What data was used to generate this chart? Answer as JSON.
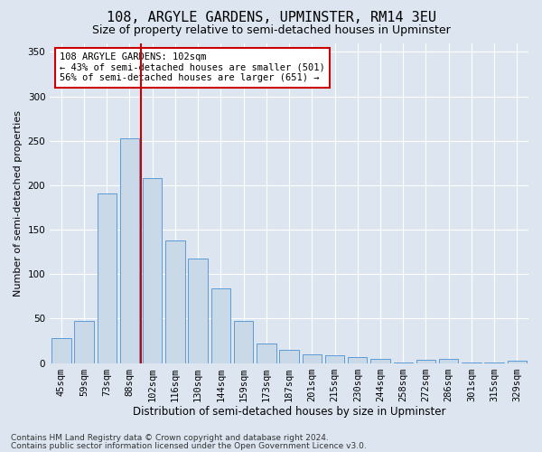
{
  "title": "108, ARGYLE GARDENS, UPMINSTER, RM14 3EU",
  "subtitle": "Size of property relative to semi-detached houses in Upminster",
  "xlabel": "Distribution of semi-detached houses by size in Upminster",
  "ylabel": "Number of semi-detached properties",
  "categories": [
    "45sqm",
    "59sqm",
    "73sqm",
    "88sqm",
    "102sqm",
    "116sqm",
    "130sqm",
    "144sqm",
    "159sqm",
    "173sqm",
    "187sqm",
    "201sqm",
    "215sqm",
    "230sqm",
    "244sqm",
    "258sqm",
    "272sqm",
    "286sqm",
    "301sqm",
    "315sqm",
    "329sqm"
  ],
  "values": [
    28,
    47,
    191,
    253,
    208,
    138,
    118,
    84,
    47,
    22,
    15,
    10,
    9,
    7,
    5,
    1,
    4,
    5,
    1,
    1,
    3
  ],
  "bar_color": "#c9d9e8",
  "bar_edge_color": "#5b9bd5",
  "vline_index": 4,
  "vline_color": "#cc0000",
  "annotation_title": "108 ARGYLE GARDENS: 102sqm",
  "annotation_line1": "← 43% of semi-detached houses are smaller (501)",
  "annotation_line2": "56% of semi-detached houses are larger (651) →",
  "annotation_box_color": "#ffffff",
  "annotation_box_edge": "#cc0000",
  "footer1": "Contains HM Land Registry data © Crown copyright and database right 2024.",
  "footer2": "Contains public sector information licensed under the Open Government Licence v3.0.",
  "ylim": [
    0,
    360
  ],
  "yticks": [
    0,
    50,
    100,
    150,
    200,
    250,
    300,
    350
  ],
  "background_color": "#dde6f0",
  "plot_bg_color": "#dde6f0",
  "grid_color": "#ffffff",
  "title_fontsize": 11,
  "subtitle_fontsize": 9,
  "xlabel_fontsize": 8.5,
  "ylabel_fontsize": 8,
  "tick_fontsize": 7.5,
  "footer_fontsize": 6.5
}
